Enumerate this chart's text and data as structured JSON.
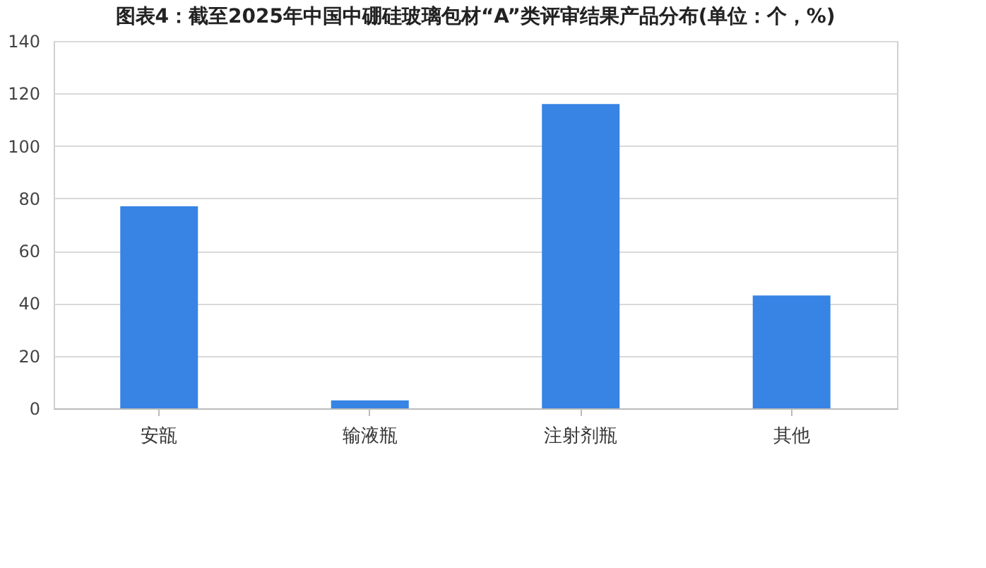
{
  "chart_data": {
    "type": "bar",
    "title": "图表4：截至2025年中国中硼硅玻璃包材“A”类评审结果产品分布(单位：个，%)",
    "categories": [
      "安瓿",
      "输液瓶",
      "注射剂瓶",
      "其他"
    ],
    "values": [
      77,
      3,
      116,
      43
    ],
    "color": "#3784e4",
    "ylim": [
      0,
      140
    ],
    "yticks": [
      0,
      20,
      40,
      60,
      80,
      100,
      120,
      140
    ],
    "grid": "y"
  }
}
